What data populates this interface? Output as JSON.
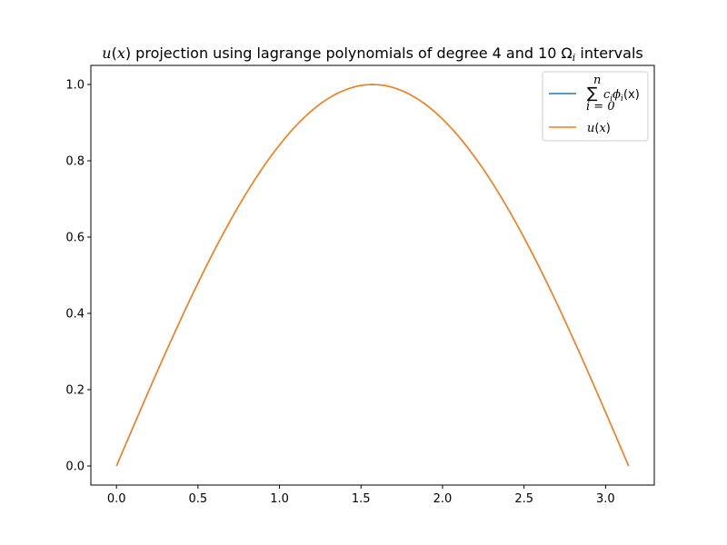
{
  "chart_data": {
    "type": "line",
    "title": {
      "prefix_var": "u",
      "prefix_arg": "x",
      "text": " projection using lagrange polynomials of degree 4 and 10 ",
      "omega": "Ω",
      "omega_sub": "i",
      "suffix": " intervals"
    },
    "xlim": [
      -0.157,
      3.299
    ],
    "ylim": [
      -0.05,
      1.05
    ],
    "xticks": [
      0.0,
      0.5,
      1.0,
      1.5,
      2.0,
      2.5,
      3.0
    ],
    "xtick_labels": [
      "0.0",
      "0.5",
      "1.0",
      "1.5",
      "2.0",
      "2.5",
      "3.0"
    ],
    "yticks": [
      0.0,
      0.2,
      0.4,
      0.6,
      0.8,
      1.0
    ],
    "ytick_labels": [
      "0.0",
      "0.2",
      "0.4",
      "0.6",
      "0.8",
      "1.0"
    ],
    "grid": false,
    "legend_position": "top-right",
    "series": [
      {
        "name": "∑ c_i φ_i(x), i=0..n",
        "legend": {
          "sum": "∑",
          "top": "n",
          "bottom": "i = 0",
          "c": "c",
          "c_sub": "i",
          "phi": "ϕ",
          "phi_sub": "i",
          "arg": "(x)"
        },
        "color": "#1f77b4",
        "x": [
          0.0,
          0.1571,
          0.3142,
          0.4712,
          0.6283,
          0.7854,
          0.9425,
          1.0996,
          1.2566,
          1.4137,
          1.5708,
          1.7279,
          1.885,
          2.042,
          2.1991,
          2.3562,
          2.5133,
          2.6704,
          2.8274,
          2.9845,
          3.1416
        ],
        "y": [
          0.0,
          0.1564,
          0.309,
          0.454,
          0.5878,
          0.7071,
          0.809,
          0.891,
          0.9511,
          0.9877,
          1.0,
          0.9877,
          0.9511,
          0.891,
          0.809,
          0.7071,
          0.5878,
          0.454,
          0.309,
          0.1564,
          0.0
        ]
      },
      {
        "name": "u(x)",
        "legend": {
          "var": "u",
          "arg": "x"
        },
        "color": "#ff7f0e",
        "x": [
          0.0,
          0.1571,
          0.3142,
          0.4712,
          0.6283,
          0.7854,
          0.9425,
          1.0996,
          1.2566,
          1.4137,
          1.5708,
          1.7279,
          1.885,
          2.042,
          2.1991,
          2.3562,
          2.5133,
          2.6704,
          2.8274,
          2.9845,
          3.1416
        ],
        "y": [
          0.0,
          0.1564,
          0.309,
          0.454,
          0.5878,
          0.7071,
          0.809,
          0.891,
          0.9511,
          0.9877,
          1.0,
          0.9877,
          0.9511,
          0.891,
          0.809,
          0.7071,
          0.5878,
          0.454,
          0.309,
          0.1564,
          0.0
        ]
      }
    ]
  }
}
